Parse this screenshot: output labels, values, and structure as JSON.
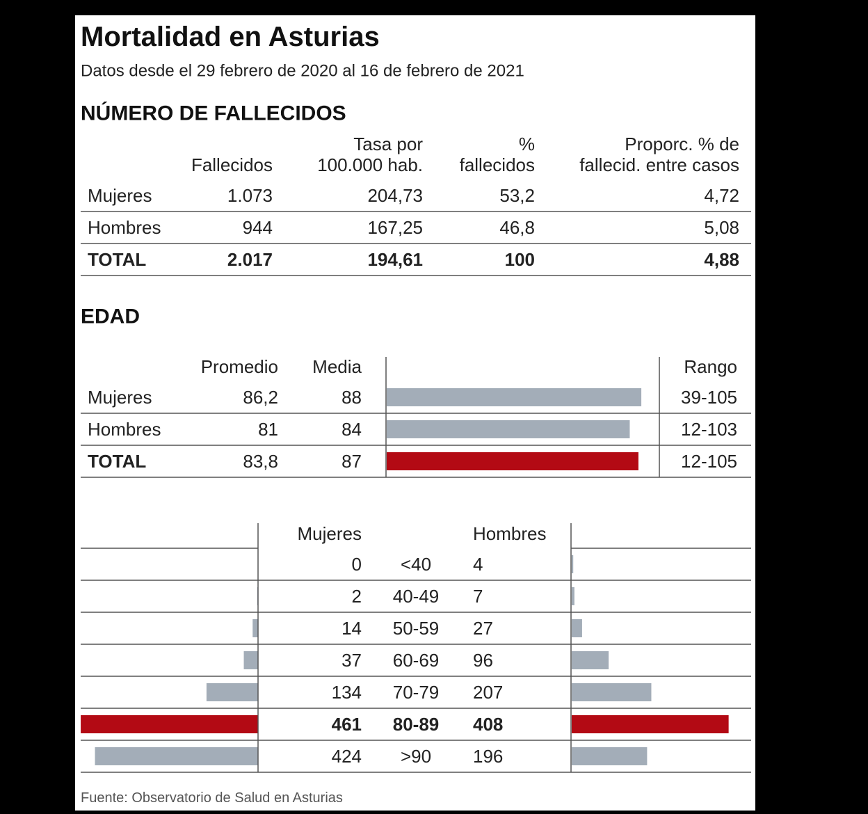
{
  "header": {
    "title": "Mortalidad en Asturias",
    "subtitle": "Datos desde el 29 febrero de 2020 al 16 de febrero de 2021"
  },
  "fallecidos": {
    "title": "NÚMERO DE FALLECIDOS",
    "columns": [
      [
        "Fallecidos"
      ],
      [
        "Tasa por",
        "100.000 hab."
      ],
      [
        "%",
        "fallecidos"
      ],
      [
        "Proporc. % de",
        "fallecid. entre casos"
      ]
    ],
    "rows": [
      {
        "label": "Mujeres",
        "cells": [
          "1.073",
          "204,73",
          "53,2",
          "4,72"
        ],
        "bold": false
      },
      {
        "label": "Hombres",
        "cells": [
          "944",
          "167,25",
          "46,8",
          "5,08"
        ],
        "bold": false
      },
      {
        "label": "TOTAL",
        "cells": [
          "2.017",
          "194,61",
          "100",
          "4,88"
        ],
        "bold": true
      }
    ]
  },
  "edad": {
    "title": "EDAD",
    "columns": [
      "Promedio",
      "Media",
      "Rango"
    ],
    "rows": [
      {
        "label": "Mujeres",
        "promedio": "86,2",
        "media": 88,
        "rango": "39-105",
        "color": "#a3adb8",
        "bold": false
      },
      {
        "label": "Hombres",
        "promedio": "81",
        "media": 84,
        "rango": "12-103",
        "color": "#a3adb8",
        "bold": false
      },
      {
        "label": "TOTAL",
        "promedio": "83,8",
        "media": 87,
        "rango": "12-105",
        "color": "#b30a14",
        "bold": true
      }
    ]
  },
  "grupos": {
    "columns": [
      "Mujeres",
      "Hombres"
    ],
    "rows": [
      {
        "group": "<40",
        "mujeres": 0,
        "hombres": 4,
        "color": "#a3adb8",
        "bold": false
      },
      {
        "group": "40-49",
        "mujeres": 2,
        "hombres": 7,
        "color": "#a3adb8",
        "bold": false
      },
      {
        "group": "50-59",
        "mujeres": 14,
        "hombres": 27,
        "color": "#a3adb8",
        "bold": false
      },
      {
        "group": "60-69",
        "mujeres": 37,
        "hombres": 96,
        "color": "#a3adb8",
        "bold": false
      },
      {
        "group": "70-79",
        "mujeres": 134,
        "hombres": 207,
        "color": "#a3adb8",
        "bold": false
      },
      {
        "group": "80-89",
        "mujeres": 461,
        "hombres": 408,
        "color": "#b30a14",
        "bold": true
      },
      {
        "group": ">90",
        "mujeres": 424,
        "hombres": 196,
        "color": "#a3adb8",
        "bold": false
      }
    ]
  },
  "source": "Fuente: Observatorio de Salud en Asturias"
}
